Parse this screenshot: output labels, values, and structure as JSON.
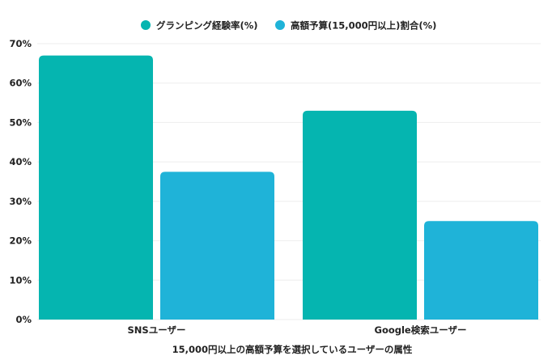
{
  "chart_data": {
    "type": "bar",
    "categories": [
      "SNSユーザー",
      "Google検索ユーザー"
    ],
    "series": [
      {
        "name": "グランピング経験率(%)",
        "values": [
          67,
          53
        ],
        "color": "#05b5b0"
      },
      {
        "name": "高額予算(15,000円以上)割合(%)",
        "values": [
          37.5,
          25
        ],
        "color": "#1fb3d8"
      }
    ],
    "xlabel": "15,000円以上の高額予算を選択しているユーザーの属性",
    "ylabel": "",
    "ylim": [
      0,
      70
    ],
    "yticks": [
      "0%",
      "10%",
      "20%",
      "30%",
      "40%",
      "50%",
      "60%",
      "70%"
    ],
    "legend_position": "top",
    "grid": true
  }
}
